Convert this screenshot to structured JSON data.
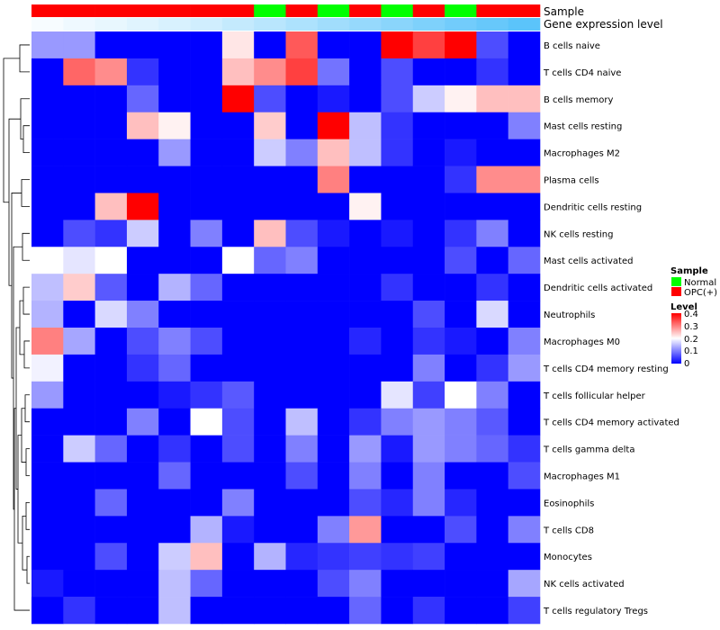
{
  "chart_data": {
    "type": "heatmap",
    "annotation_tracks": [
      {
        "name": "Sample",
        "values": [
          "OPC(+)",
          "OPC(+)",
          "OPC(+)",
          "OPC(+)",
          "OPC(+)",
          "OPC(+)",
          "OPC(+)",
          "Normal",
          "OPC(+)",
          "Normal",
          "OPC(+)",
          "Normal",
          "OPC(+)",
          "Normal",
          "OPC(+)",
          "OPC(+)"
        ]
      },
      {
        "name": "Gene expression level",
        "values": [
          0.02,
          0.04,
          0.06,
          0.08,
          0.1,
          0.12,
          0.15,
          0.18,
          0.21,
          0.24,
          0.27,
          0.3,
          0.33,
          0.36,
          0.39,
          0.42
        ]
      }
    ],
    "rows": [
      "B cells naive",
      "T cells CD4 naive",
      "B cells memory",
      "Mast cells resting",
      "Macrophages M2",
      "Plasma cells",
      "Dendritic cells resting",
      "NK cells resting",
      "Mast cells activated",
      "Dendritic cells activated",
      "Neutrophils",
      "Macrophages M0",
      "T cells CD4 memory resting",
      "T cells follicular helper",
      "T cells CD4 memory activated",
      "T cells gamma delta",
      "Macrophages M1",
      "Eosinophils",
      "T cells CD8",
      "Monocytes",
      "NK cells activated",
      "T cells regulatory  Tregs"
    ],
    "values": [
      [
        0.12,
        0.12,
        0,
        0,
        0,
        0,
        0.22,
        0,
        0.33,
        0,
        0,
        0.4,
        0.35,
        0.4,
        0.06,
        0
      ],
      [
        0,
        0.32,
        0.29,
        0.04,
        0,
        0,
        0.25,
        0.29,
        0.35,
        0.09,
        0,
        0.06,
        0,
        0,
        0.04,
        0
      ],
      [
        0,
        0,
        0,
        0.08,
        0,
        0,
        0.4,
        0.06,
        0,
        0.02,
        0,
        0.06,
        0.16,
        0.21,
        0.25,
        0.25
      ],
      [
        0,
        0,
        0,
        0.25,
        0.21,
        0,
        0,
        0.24,
        0,
        0.4,
        0.15,
        0.04,
        0,
        0,
        0,
        0.1
      ],
      [
        0,
        0,
        0,
        0,
        0.12,
        0,
        0,
        0.16,
        0.1,
        0.25,
        0.15,
        0.04,
        0,
        0.02,
        0,
        0
      ],
      [
        0,
        0,
        0,
        0,
        0,
        0,
        0,
        0,
        0,
        0.3,
        0,
        0,
        0,
        0.04,
        0.29,
        0.29
      ],
      [
        0,
        0,
        0.25,
        0.4,
        0,
        0,
        0,
        0,
        0,
        0,
        0.21,
        0,
        0,
        0,
        0,
        0
      ],
      [
        0,
        0.06,
        0.04,
        0.16,
        0,
        0.1,
        0,
        0.25,
        0.06,
        0.02,
        0,
        0.02,
        0,
        0.04,
        0.1,
        0
      ],
      [
        0.2,
        0.18,
        0.2,
        0,
        0,
        0,
        0.2,
        0.08,
        0.1,
        0,
        0,
        0,
        0,
        0.06,
        0,
        0.08
      ],
      [
        0.15,
        0.24,
        0.07,
        0,
        0.14,
        0.08,
        0,
        0,
        0,
        0,
        0,
        0.04,
        0,
        0,
        0.04,
        0
      ],
      [
        0.14,
        0,
        0.17,
        0.1,
        0,
        0,
        0,
        0,
        0,
        0,
        0,
        0,
        0.06,
        0,
        0.17,
        0
      ],
      [
        0.3,
        0.13,
        0,
        0.06,
        0.1,
        0.06,
        0,
        0,
        0,
        0,
        0.03,
        0,
        0.04,
        0.02,
        0,
        0.1
      ],
      [
        0.19,
        0,
        0,
        0.04,
        0.08,
        0,
        0,
        0,
        0,
        0,
        0,
        0,
        0.1,
        0,
        0.04,
        0.12
      ],
      [
        0.12,
        0,
        0,
        0,
        0.02,
        0.04,
        0.07,
        0,
        0,
        0,
        0,
        0.18,
        0.05,
        0.2,
        0.1,
        0
      ],
      [
        0,
        0,
        0,
        0.1,
        0,
        0.2,
        0.06,
        0,
        0.15,
        0,
        0.04,
        0.1,
        0.12,
        0.1,
        0.07,
        0
      ],
      [
        0,
        0.16,
        0.08,
        0,
        0.04,
        0,
        0.06,
        0,
        0.1,
        0,
        0.12,
        0.02,
        0.12,
        0.1,
        0.08,
        0.04
      ],
      [
        0,
        0,
        0,
        0,
        0.08,
        0,
        0,
        0,
        0.06,
        0,
        0.1,
        0,
        0.1,
        0,
        0,
        0.06
      ],
      [
        0,
        0,
        0.08,
        0,
        0,
        0,
        0.1,
        0,
        0,
        0,
        0.06,
        0.03,
        0.1,
        0.03,
        0,
        0
      ],
      [
        0,
        0,
        0,
        0,
        0,
        0.14,
        0.02,
        0,
        0,
        0.1,
        0.28,
        0,
        0,
        0.06,
        0,
        0.1
      ],
      [
        0,
        0,
        0.06,
        0,
        0.16,
        0.25,
        0,
        0.14,
        0.03,
        0.04,
        0.05,
        0.04,
        0.05,
        0,
        0,
        0
      ],
      [
        0.02,
        0,
        0,
        0,
        0.15,
        0.08,
        0,
        0,
        0,
        0.06,
        0.1,
        0,
        0,
        0,
        0,
        0.13
      ],
      [
        0,
        0.04,
        0,
        0,
        0.15,
        0,
        0,
        0,
        0,
        0,
        0.08,
        0,
        0.04,
        0,
        0,
        0.05
      ]
    ],
    "color_scale": {
      "min": 0,
      "max": 0.4,
      "low": "#0000FF",
      "mid": "#FFFFFF",
      "high": "#FF0000",
      "mid_value": 0.2
    },
    "legend": {
      "sample_title": "Sample",
      "sample_items": [
        {
          "label": "Normal",
          "color": "#00FF00"
        },
        {
          "label": "OPC(+)",
          "color": "#FF0000"
        }
      ],
      "level_title": "Level",
      "level_ticks": [
        "0.4",
        "0.3",
        "0.2",
        "0.1",
        "0"
      ],
      "position": "right"
    },
    "row_dendrogram": true
  }
}
